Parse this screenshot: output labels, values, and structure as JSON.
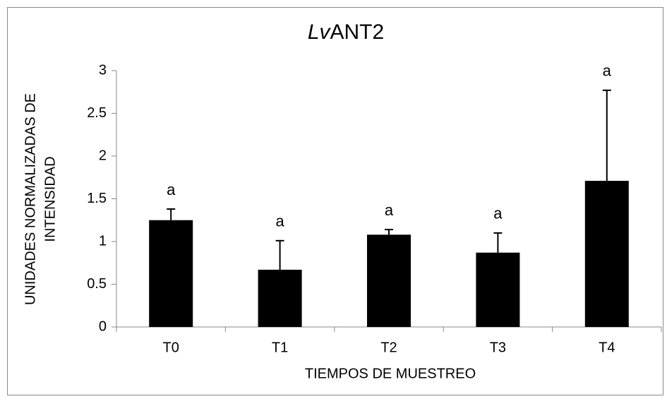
{
  "chart_data": {
    "type": "bar",
    "title": [
      "Lv",
      "ANT2"
    ],
    "title_italic": [
      true,
      false
    ],
    "y_label": [
      "UNIDADES  NORMALIZADAS  DE",
      "INTENSIDAD"
    ],
    "x_label": "TIEMPOS  DE  MUESTREO",
    "categories": [
      "T0",
      "T1",
      "T2",
      "T3",
      "T4"
    ],
    "values": [
      1.25,
      0.67,
      1.08,
      0.87,
      1.71
    ],
    "errors": [
      0.13,
      0.34,
      0.06,
      0.23,
      1.06
    ],
    "letters": [
      "a",
      "a",
      "a",
      "a",
      "a"
    ],
    "color": "#000000",
    "ylim": [
      0,
      3
    ],
    "yticks": [
      0,
      0.5,
      1,
      1.5,
      2,
      2.5,
      3
    ],
    "grid": false
  }
}
